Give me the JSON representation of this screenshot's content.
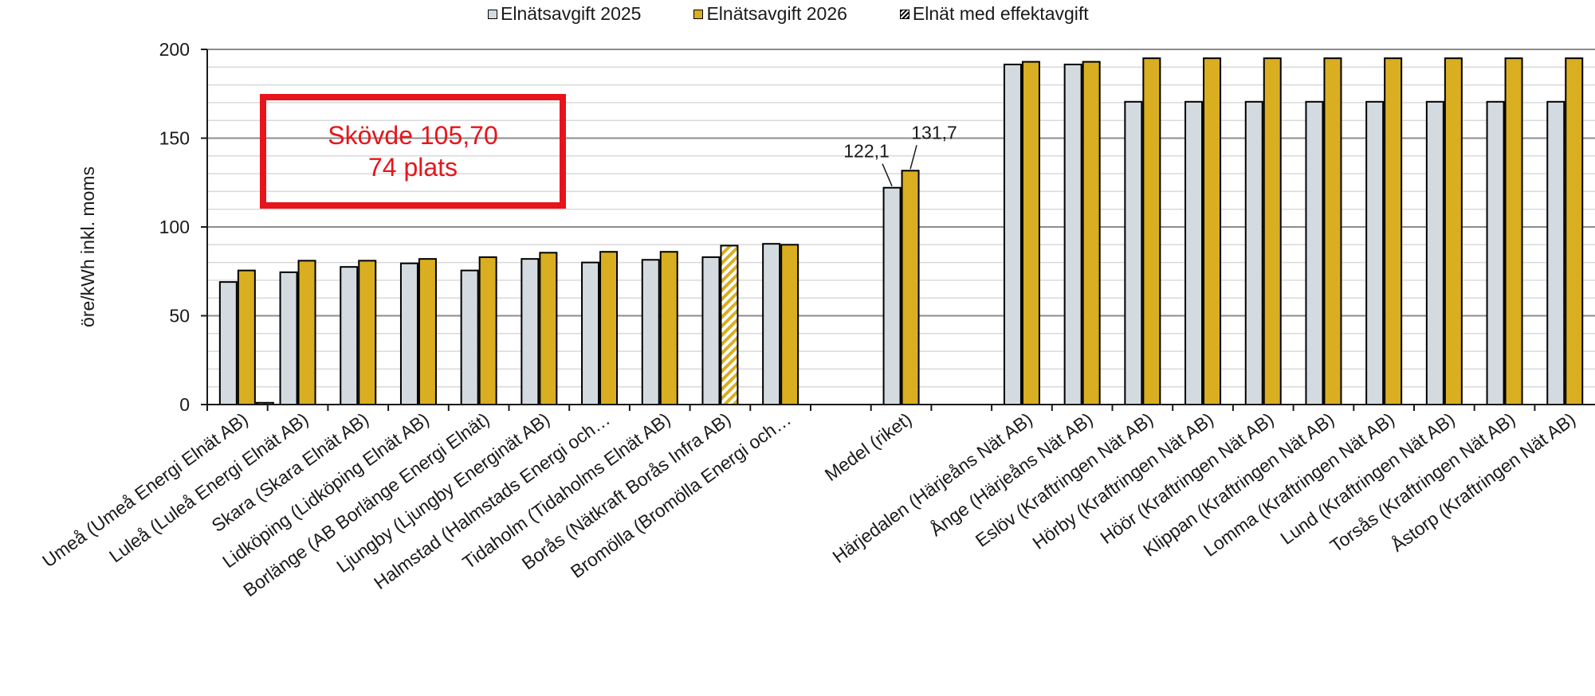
{
  "legend": {
    "item1": "Elnätsavgift 2025",
    "item2": "Elnätsavgift 2026",
    "item3": "Elnät med effektavgift"
  },
  "callout": {
    "line1": "Skövde 105,70",
    "line2": "74 plats"
  },
  "colors": {
    "series2025": "#d4dbe0",
    "series2026": "#d9ae20",
    "callout": "#e8141b",
    "gridline": "#d9d9d9"
  },
  "chart_data": {
    "type": "bar",
    "title": "",
    "xlabel": "",
    "ylabel": "öre/kWh inkl. moms",
    "ylim": [
      0,
      200
    ],
    "yticks": [
      0,
      50,
      100,
      150,
      200
    ],
    "grid": true,
    "legend_position": "top",
    "categories": [
      "Umeå (Umeå Energi Elnät AB)",
      "Luleå (Luleå Energi Elnät AB)",
      "Skara (Skara Elnät AB)",
      "Lidköping (Lidköping Elnät AB)",
      "Borlänge (AB Borlänge Energi Elnät)",
      "Ljungby (Ljungby Energinät AB)",
      "Halmstad (Halmstads Energi och…",
      "Tidaholm (Tidaholms Elnät AB)",
      "Borås (Nätkraft Borås Infra AB)",
      "Bromölla (Bromölla Energi och…",
      "",
      "Medel (riket)",
      "",
      "Härjedalen (Härjeåns Nät AB)",
      "Ånge (Härjeåns Nät AB)",
      "Eslöv (Kraftringen Nät AB)",
      "Hörby (Kraftringen Nät AB)",
      "Höör (Kraftringen Nät AB)",
      "Klippan (Kraftringen Nät AB)",
      "Lomma (Kraftringen Nät AB)",
      "Lund (Kraftringen Nät AB)",
      "Torsås (Kraftringen Nät AB)",
      "Åstorp (Kraftringen Nät AB)"
    ],
    "series": [
      {
        "name": "Elnätsavgift 2025",
        "values": [
          69,
          74.5,
          77.5,
          79.5,
          75.5,
          82,
          80,
          81.5,
          83,
          90.5,
          null,
          122.1,
          null,
          191.5,
          191.5,
          170.5,
          170.5,
          170.5,
          170.5,
          170.5,
          170.5,
          170.5,
          170.5
        ]
      },
      {
        "name": "Elnätsavgift 2026",
        "values": [
          75.5,
          81,
          81,
          82,
          83,
          85.5,
          86,
          86,
          null,
          90,
          null,
          131.7,
          null,
          193,
          193,
          195,
          195,
          195,
          195,
          195,
          195,
          195,
          195
        ]
      },
      {
        "name": "Elnät med effektavgift",
        "values": [
          1,
          null,
          null,
          null,
          null,
          null,
          null,
          null,
          89.5,
          null,
          null,
          null,
          null,
          null,
          null,
          null,
          null,
          null,
          null,
          null,
          null,
          null,
          null
        ]
      }
    ],
    "annotations": [
      {
        "text": "122,1",
        "category": "Medel (riket)",
        "series": "Elnätsavgift 2025"
      },
      {
        "text": "131,7",
        "category": "Medel (riket)",
        "series": "Elnätsavgift 2026"
      }
    ]
  }
}
